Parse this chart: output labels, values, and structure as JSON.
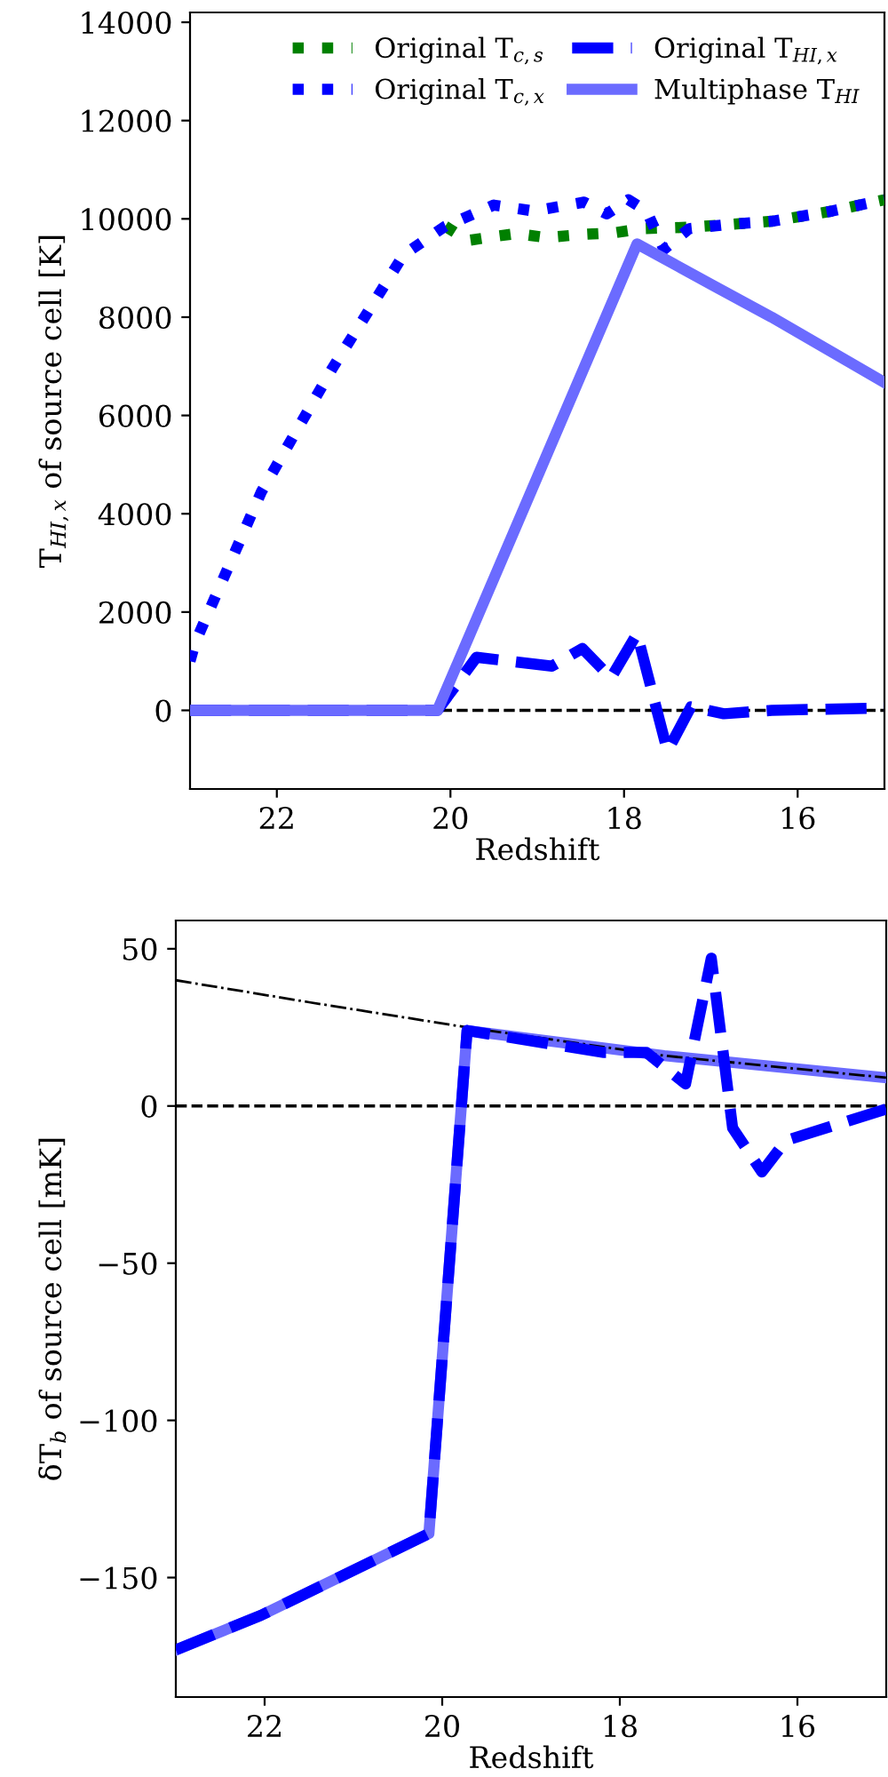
{
  "chart_data": [
    {
      "type": "line",
      "xlabel": "Redshift",
      "ylabel": "T$_{HI,x}$ of source cell [K]",
      "xlim": [
        23,
        15
      ],
      "xticks": [
        22,
        20,
        18,
        16
      ],
      "ylim": [
        -1600,
        14200
      ],
      "yticks": [
        0,
        2000,
        4000,
        6000,
        8000,
        10000,
        12000,
        14000
      ],
      "legend": "top right",
      "grid": false,
      "series": [
        {
          "name": "Original T$_{c,s}$",
          "color": "#008000",
          "line_style": "dotted",
          "x": [
            20.06,
            19.8,
            19.5,
            19.24,
            18.9,
            18.5,
            18.1,
            17.8,
            17.25,
            16.84,
            16.3,
            15.6,
            15
          ],
          "values": [
            9850,
            9560,
            9640,
            9700,
            9620,
            9680,
            9720,
            9800,
            9830,
            9880,
            9950,
            10160,
            10390
          ]
        },
        {
          "name": "Original T$_{c,x}$",
          "color": "#0000ff",
          "line_style": "dotted",
          "x": [
            23,
            22.94,
            22.18,
            21.36,
            20.95,
            20.54,
            20.06,
            19.5,
            19.04,
            18.46,
            18.2,
            17.95,
            17.74,
            17.54,
            17.25,
            16.84,
            16.3,
            15.6,
            15
          ],
          "values": [
            1000,
            1380,
            4440,
            6960,
            8110,
            9270,
            9850,
            10280,
            10160,
            10340,
            10100,
            10390,
            10160,
            9380,
            9800,
            9880,
            9950,
            10160,
            10390
          ]
        },
        {
          "name": "Original T$_{HI,x}$",
          "color": "#0000ff",
          "line_style": "dashed",
          "x": [
            23,
            20.15,
            19.7,
            18.83,
            18.48,
            18.15,
            17.85,
            17.5,
            17.23,
            16.85,
            16.3,
            15
          ],
          "values": [
            0,
            0,
            1080,
            900,
            1260,
            660,
            1560,
            -830,
            70,
            -70,
            0,
            50
          ]
        },
        {
          "name": "Multiphase T$_{HI}$",
          "color": "#6b6bff",
          "line_style": "solid",
          "x": [
            23,
            20.15,
            17.85,
            16.98,
            16.3,
            15
          ],
          "values": [
            0,
            0,
            9490,
            8650,
            8000,
            6670
          ]
        }
      ],
      "ref_lines": [
        {
          "axis": "y",
          "value": 0,
          "color": "#000000",
          "line_style": "dashed"
        }
      ]
    },
    {
      "type": "line",
      "xlabel": "Redshift",
      "ylabel": "δT$_{b}$ of source cell [mK]",
      "xlim": [
        23,
        15
      ],
      "xticks": [
        22,
        20,
        18,
        16
      ],
      "ylim": [
        -188,
        59
      ],
      "yticks": [
        -150,
        -100,
        -50,
        0,
        50
      ],
      "legend": false,
      "grid": false,
      "series": [
        {
          "color": "#6b6bff",
          "line_style": "solid",
          "x": [
            23,
            22.04,
            20.15,
            19.72,
            17.5,
            15
          ],
          "values": [
            -173,
            -162,
            -136,
            24,
            16,
            9
          ]
        },
        {
          "color": "#000000",
          "line_style": "dashdot",
          "x": [
            23,
            21.5,
            19.72,
            17.5,
            15
          ],
          "values": [
            40,
            33,
            25,
            16,
            9
          ]
        },
        {
          "color": "#0000ff",
          "line_style": "dashed",
          "x": [
            23,
            22.04,
            20.15,
            19.72,
            18.18,
            17.7,
            17.26,
            16.97,
            16.73,
            16.4,
            16.13,
            15
          ],
          "values": [
            -173,
            -162,
            -136,
            24,
            17,
            17,
            7,
            47,
            -7,
            -21,
            -11,
            -1
          ]
        }
      ],
      "ref_lines": [
        {
          "axis": "y",
          "value": 0,
          "color": "#000000",
          "line_style": "dashed"
        }
      ]
    }
  ]
}
